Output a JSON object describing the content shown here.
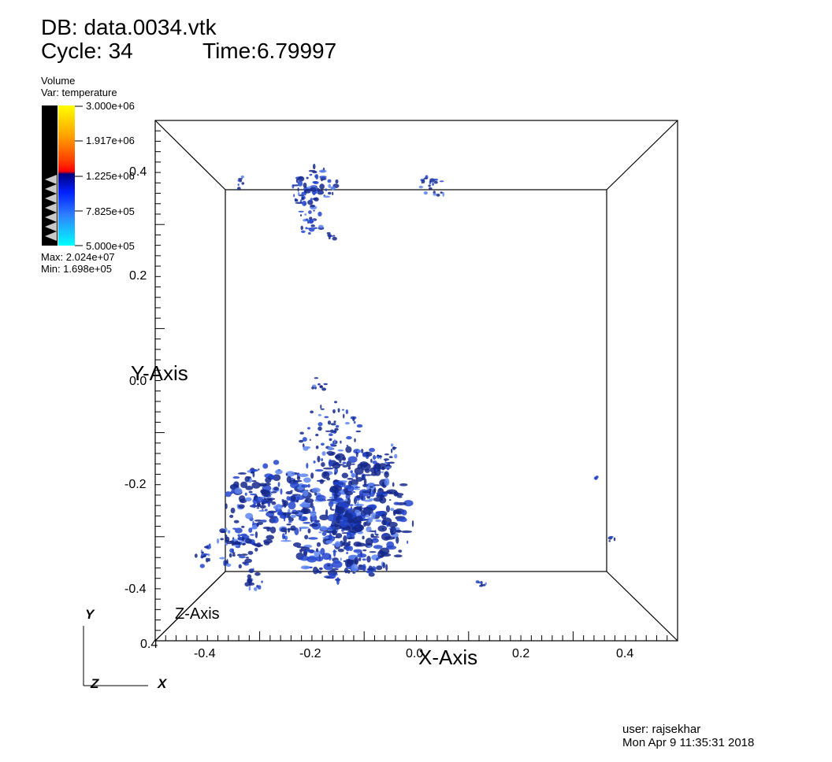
{
  "header": {
    "db_line": "DB: data.0034.vtk",
    "cycle_line": "Cycle: 34",
    "time_line": "Time:6.79997"
  },
  "legend": {
    "plot_type": "Volume",
    "variable": "Var: temperature",
    "ticks": [
      "3.000e+06",
      "1.917e+06",
      "1.225e+06",
      "7.825e+05",
      "5.000e+05"
    ],
    "max_label": "Max:  2.024e+07",
    "min_label": "Min:  1.698e+05",
    "colors": {
      "black": "#000000",
      "yellow": "#ffff00",
      "orange": "#ff6600",
      "red": "#ff0000",
      "dark_blue": "#000080",
      "blue": "#1a4fff",
      "cyan": "#00ffff"
    }
  },
  "axes": {
    "x_title": "X-Axis",
    "y_title": "Y-Axis",
    "z_title": "Z-Axis",
    "x_ticks": [
      "-0.4",
      "-0.2",
      "0.0",
      "0.2",
      "0.4"
    ],
    "y_ticks": [
      "0.4",
      "0.2",
      "0.0",
      "-0.2",
      "-0.4"
    ],
    "z_corner_tick": "0.4",
    "triad": {
      "y": "Y",
      "z": "Z",
      "x": "X"
    }
  },
  "footer": {
    "user": "user: rajsekhar",
    "date": "Mon Apr  9 11:35:31 2018"
  },
  "render": {
    "blob_color": "#14288c",
    "blob_light": "#3a63e0"
  }
}
